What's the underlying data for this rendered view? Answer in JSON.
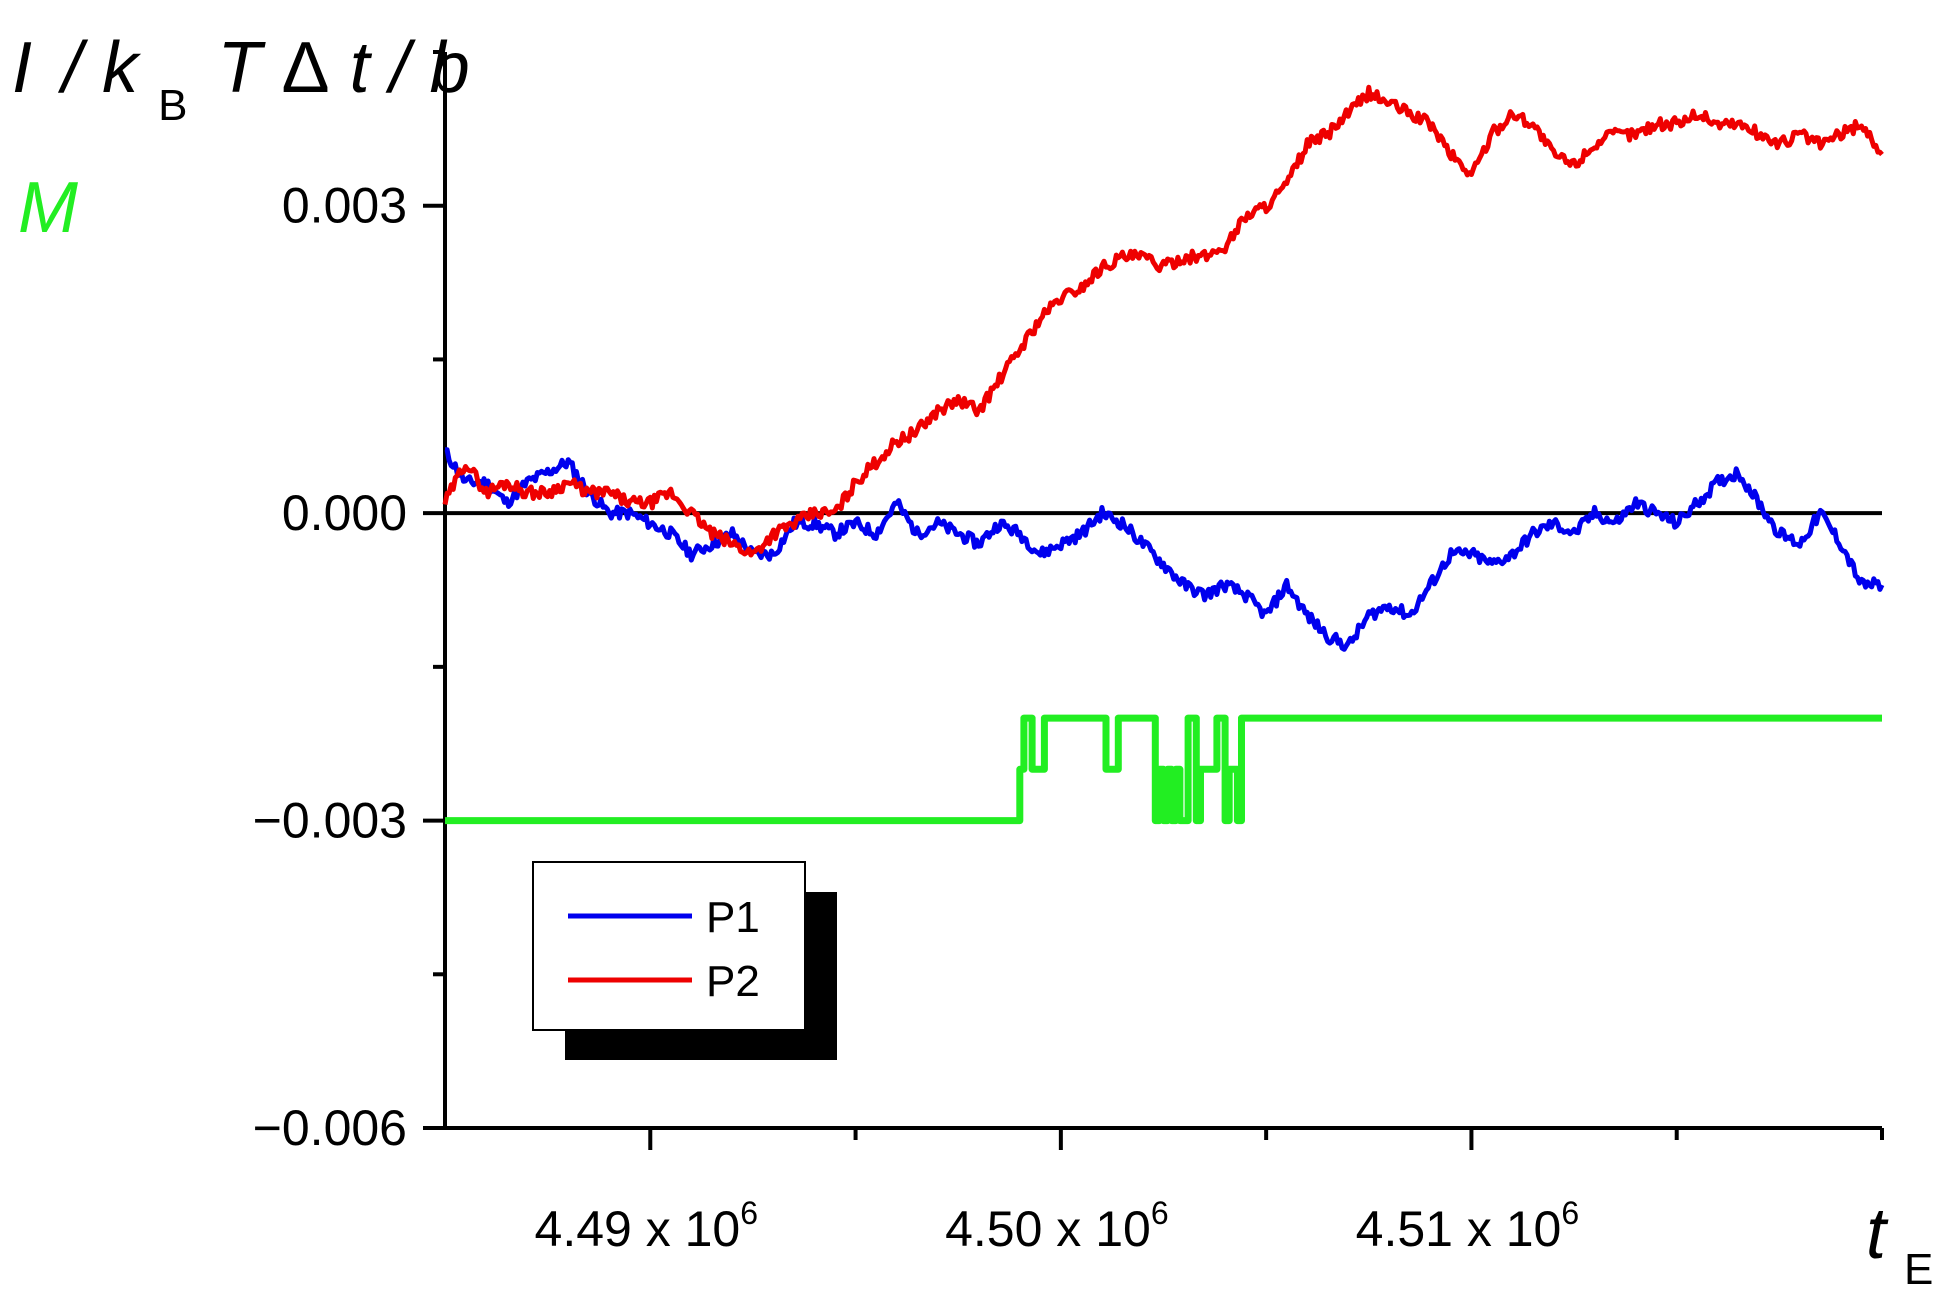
{
  "chart_data": {
    "type": "line",
    "ylabel": {
      "I": "I",
      "slash1": "/",
      "k": "k",
      "B": "B",
      "T": "T",
      "delta": "Δ",
      "t": "t",
      "slash2": "/",
      "b": "b"
    },
    "ylabel2": "M",
    "xlabel": {
      "t": "t",
      "E": "E"
    },
    "xlim": [
      4485000.0,
      4520000.0
    ],
    "ylim": [
      -0.006,
      0.0045
    ],
    "yticks": [
      {
        "value": 0.003,
        "label": "0.003"
      },
      {
        "value": 0.0,
        "label": "0.000"
      },
      {
        "value": -0.003,
        "label": "−0.003"
      },
      {
        "value": -0.006,
        "label": "−0.006"
      }
    ],
    "xticks": [
      {
        "value": 4490000.0,
        "label": "4.49 x 10",
        "exp": "6"
      },
      {
        "value": 4500000.0,
        "label": "4.50 x 10",
        "exp": "6"
      },
      {
        "value": 4510000.0,
        "label": "4.51 x 10",
        "exp": "6"
      }
    ],
    "zero_line": true,
    "legend": {
      "position": "bottom-left",
      "entries": [
        "P1",
        "P2"
      ]
    },
    "colors": {
      "P1": "#0000ee",
      "P2": "#ee0000",
      "M": "#22ee22"
    },
    "series": [
      {
        "name": "P1",
        "color": "#0000ee",
        "x": [
          4485000.0,
          4485500.0,
          4486000.0,
          4486500.0,
          4487000.0,
          4487500.0,
          4488000.0,
          4488500.0,
          4489000.0,
          4489500.0,
          4490000.0,
          4490500.0,
          4491000.0,
          4491500.0,
          4492000.0,
          4492500.0,
          4493000.0,
          4493500.0,
          4494000.0,
          4494500.0,
          4495000.0,
          4495500.0,
          4496000.0,
          4496500.0,
          4497000.0,
          4497500.0,
          4498000.0,
          4498500.0,
          4499000.0,
          4499500.0,
          4500000.0,
          4500500.0,
          4501000.0,
          4501500.0,
          4502000.0,
          4502500.0,
          4503000.0,
          4503500.0,
          4504000.0,
          4504500.0,
          4505000.0,
          4505500.0,
          4506000.0,
          4506500.0,
          4507000.0,
          4507500.0,
          4508000.0,
          4508500.0,
          4509000.0,
          4509500.0,
          4510000.0,
          4510500.0,
          4511000.0,
          4511500.0,
          4512000.0,
          4512500.0,
          4513000.0,
          4513500.0,
          4514000.0,
          4514500.0,
          4515000.0,
          4515500.0,
          4516000.0,
          4516500.0,
          4517000.0,
          4517500.0,
          4518000.0,
          4518500.0,
          4519000.0,
          4519500.0,
          4520000.0
        ],
        "values": [
          0.0006,
          0.0003,
          0.0003,
          0.0001,
          0.0003,
          0.0004,
          0.0005,
          0.0002,
          0.0,
          0.0,
          -0.0001,
          -0.0002,
          -0.0004,
          -0.0003,
          -0.0002,
          -0.0004,
          -0.0004,
          -0.0001,
          -0.0001,
          -0.0002,
          -0.0001,
          -0.0002,
          0.0001,
          -0.0002,
          -0.0001,
          -0.0002,
          -0.0003,
          -0.0001,
          -0.0002,
          -0.0004,
          -0.0003,
          -0.0002,
          0.0,
          -0.0001,
          -0.0003,
          -0.0005,
          -0.0007,
          -0.0008,
          -0.0007,
          -0.0008,
          -0.001,
          -0.0007,
          -0.001,
          -0.0012,
          -0.0013,
          -0.001,
          -0.0009,
          -0.001,
          -0.0007,
          -0.0004,
          -0.0004,
          -0.0005,
          -0.0004,
          -0.0002,
          -0.0001,
          -0.0002,
          0.0,
          -0.0001,
          0.0001,
          0.0,
          -0.0001,
          0.0001,
          0.0003,
          0.0004,
          0.0001,
          -0.0002,
          -0.0003,
          0.0,
          -0.0003,
          -0.0007,
          -0.0007
        ]
      },
      {
        "name": "P2",
        "color": "#ee0000",
        "x": [
          4485000.0,
          4485500.0,
          4486000.0,
          4486500.0,
          4487000.0,
          4487500.0,
          4488000.0,
          4488500.0,
          4489000.0,
          4489500.0,
          4490000.0,
          4490500.0,
          4491000.0,
          4491500.0,
          4492000.0,
          4492500.0,
          4493000.0,
          4493500.0,
          4494000.0,
          4494500.0,
          4495000.0,
          4495500.0,
          4496000.0,
          4496500.0,
          4497000.0,
          4497500.0,
          4498000.0,
          4498500.0,
          4499000.0,
          4499500.0,
          4500000.0,
          4500500.0,
          4501000.0,
          4501500.0,
          4502000.0,
          4502500.0,
          4503000.0,
          4503500.0,
          4504000.0,
          4504500.0,
          4505000.0,
          4505500.0,
          4506000.0,
          4506500.0,
          4507000.0,
          4507500.0,
          4508000.0,
          4508500.0,
          4509000.0,
          4509500.0,
          4510000.0,
          4510500.0,
          4511000.0,
          4511500.0,
          4512000.0,
          4512500.0,
          4513000.0,
          4513500.0,
          4514000.0,
          4514500.0,
          4515000.0,
          4515500.0,
          4516000.0,
          4516500.0,
          4517000.0,
          4517500.0,
          4518000.0,
          4518500.0,
          4519000.0,
          4519500.0,
          4520000.0
        ],
        "values": [
          0.0001,
          0.0005,
          0.0002,
          0.0003,
          0.0002,
          0.0002,
          0.0003,
          0.0002,
          0.0002,
          0.0001,
          0.0001,
          0.0002,
          0.0,
          -0.0002,
          -0.0003,
          -0.0004,
          -0.0002,
          -0.0001,
          0.0,
          0.0,
          0.0003,
          0.0005,
          0.0007,
          0.0008,
          0.001,
          0.0011,
          0.001,
          0.0013,
          0.0016,
          0.0019,
          0.0021,
          0.0022,
          0.0024,
          0.0025,
          0.0025,
          0.0024,
          0.0025,
          0.0025,
          0.0026,
          0.0029,
          0.003,
          0.0032,
          0.0036,
          0.0037,
          0.0039,
          0.0041,
          0.004,
          0.0039,
          0.0038,
          0.0035,
          0.0033,
          0.0037,
          0.0039,
          0.0038,
          0.0035,
          0.0034,
          0.0036,
          0.0037,
          0.0037,
          0.0038,
          0.0038,
          0.0039,
          0.0038,
          0.0038,
          0.0037,
          0.0036,
          0.0037,
          0.0036,
          0.0037,
          0.0038,
          0.0035
        ]
      },
      {
        "name": "M",
        "color": "#22ee22",
        "step": true,
        "x": [
          4485000.0,
          4499000.0,
          4499000.0,
          4499100.0,
          4499100.0,
          4499300.0,
          4499300.0,
          4499600.0,
          4499600.0,
          4501100.0,
          4501100.0,
          4501400.0,
          4501400.0,
          4502300.0,
          4502300.0,
          4502400.0,
          4502400.0,
          4502500.0,
          4502500.0,
          4502600.0,
          4502600.0,
          4502700.0,
          4502700.0,
          4502800.0,
          4502800.0,
          4502900.0,
          4502900.0,
          4503100.0,
          4503100.0,
          4503300.0,
          4503300.0,
          4503400.0,
          4503400.0,
          4503800.0,
          4503800.0,
          4504000.0,
          4504000.0,
          4504100.0,
          4504100.0,
          4504300.0,
          4504300.0,
          4504400.0,
          4504400.0,
          4504600.0,
          4504600.0,
          4520000.0
        ],
        "values": [
          -0.003,
          -0.003,
          -0.0025,
          -0.0025,
          -0.002,
          -0.002,
          -0.0025,
          -0.0025,
          -0.002,
          -0.002,
          -0.0025,
          -0.0025,
          -0.002,
          -0.002,
          -0.003,
          -0.003,
          -0.0025,
          -0.0025,
          -0.003,
          -0.003,
          -0.0025,
          -0.0025,
          -0.003,
          -0.003,
          -0.0025,
          -0.0025,
          -0.003,
          -0.003,
          -0.002,
          -0.002,
          -0.003,
          -0.003,
          -0.0025,
          -0.0025,
          -0.002,
          -0.002,
          -0.003,
          -0.003,
          -0.0025,
          -0.0025,
          -0.003,
          -0.003,
          -0.002,
          -0.002,
          -0.002,
          -0.002
        ]
      }
    ]
  }
}
